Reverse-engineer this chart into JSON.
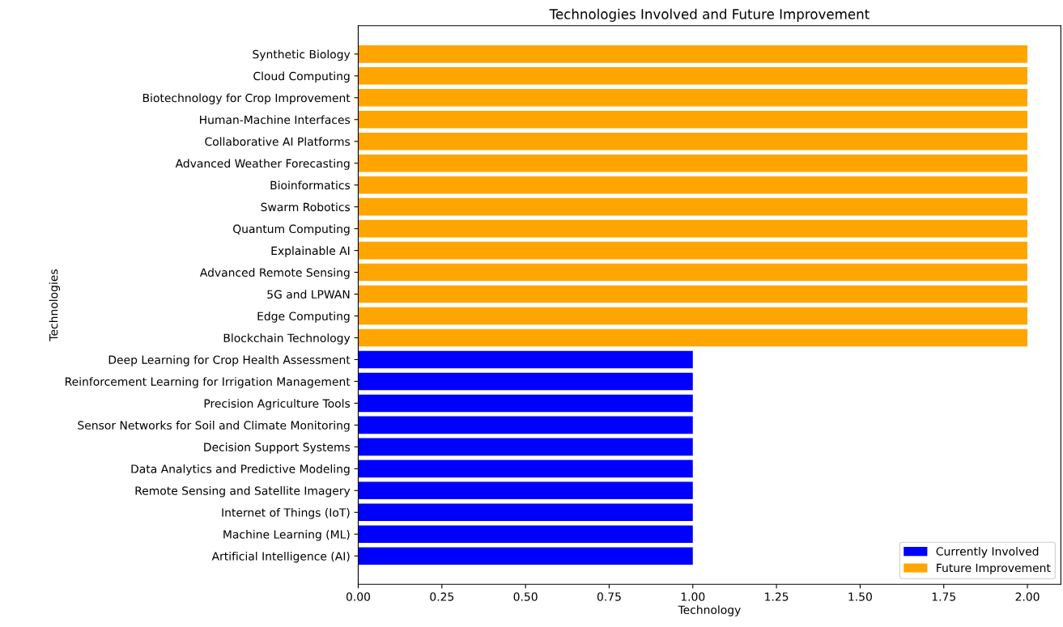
{
  "chart_data": {
    "type": "bar",
    "orientation": "horizontal",
    "title": "Technologies Involved and Future Improvement",
    "xlabel": "Technology",
    "ylabel": "Technologies",
    "categories": [
      "Synthetic Biology",
      "Cloud Computing",
      "Biotechnology for Crop Improvement",
      "Human-Machine Interfaces",
      "Collaborative AI Platforms",
      "Advanced Weather Forecasting",
      "Bioinformatics",
      "Swarm Robotics",
      "Quantum Computing",
      "Explainable AI",
      "Advanced Remote Sensing",
      "5G and LPWAN",
      "Edge Computing",
      "Blockchain Technology",
      "Deep Learning for Crop Health Assessment",
      "Reinforcement Learning for Irrigation Management",
      "Precision Agriculture Tools",
      "Sensor Networks for Soil and Climate Monitoring",
      "Decision Support Systems",
      "Data Analytics and Predictive Modeling",
      "Remote Sensing and Satellite Imagery",
      "Internet of Things (IoT)",
      "Machine Learning (ML)",
      "Artificial Intelligence (AI)"
    ],
    "series": [
      {
        "name": "Currently Involved",
        "color": "#0000ff",
        "values": [
          null,
          null,
          null,
          null,
          null,
          null,
          null,
          null,
          null,
          null,
          null,
          null,
          null,
          null,
          1,
          1,
          1,
          1,
          1,
          1,
          1,
          1,
          1,
          1
        ]
      },
      {
        "name": "Future Improvement",
        "color": "#ffa500",
        "values": [
          2,
          2,
          2,
          2,
          2,
          2,
          2,
          2,
          2,
          2,
          2,
          2,
          2,
          2,
          null,
          null,
          null,
          null,
          null,
          null,
          null,
          null,
          null,
          null
        ]
      }
    ],
    "xlim": [
      0,
      2.1
    ],
    "xticks": [
      {
        "value": 0,
        "label": "0.00"
      },
      {
        "value": 0.25,
        "label": "0.25"
      },
      {
        "value": 0.5,
        "label": "0.50"
      },
      {
        "value": 0.75,
        "label": "0.75"
      },
      {
        "value": 1,
        "label": "1.00"
      },
      {
        "value": 1.25,
        "label": "1.25"
      },
      {
        "value": 1.5,
        "label": "1.50"
      },
      {
        "value": 1.75,
        "label": "1.75"
      },
      {
        "value": 2,
        "label": "2.00"
      }
    ],
    "legend": "bottom right",
    "grid": false
  }
}
